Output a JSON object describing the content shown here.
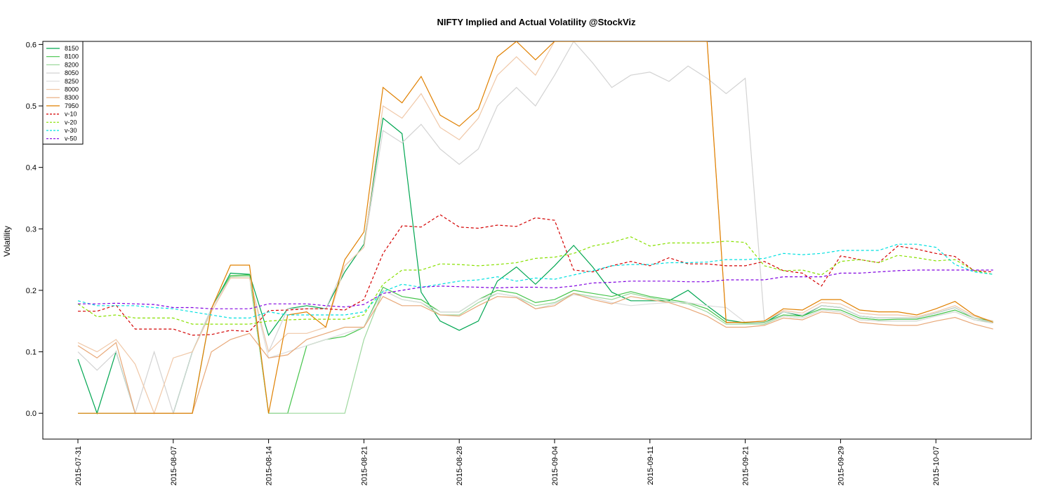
{
  "chart_data": {
    "type": "line",
    "title": "NIFTY Implied and Actual Volatility @StockViz",
    "xlabel": "",
    "ylabel": "Volatility",
    "ylim": [
      -0.042,
      0.605
    ],
    "yticks": [
      0.0,
      0.1,
      0.2,
      0.3,
      0.4,
      0.5,
      0.6
    ],
    "ytick_labels": [
      "0.0",
      "0.1",
      "0.2",
      "0.3",
      "0.4",
      "0.5",
      "0.6"
    ],
    "x_tick_labels": [
      "2015-07-31",
      "2015-08-07",
      "2015-08-14",
      "2015-08-21",
      "2015-08-28",
      "2015-09-04",
      "2015-09-11",
      "2015-09-21",
      "2015-09-29",
      "2015-10-07"
    ],
    "x_tick_index": [
      0,
      5,
      10,
      15,
      20,
      25,
      30,
      35,
      40,
      45
    ],
    "grid": false,
    "legend_position": "top-left",
    "series": [
      {
        "name": "8150",
        "color": "#00a651",
        "dash": "",
        "values": [
          0.088,
          0.0,
          0.1,
          0.0,
          0.0,
          0.0,
          0.1,
          0.17,
          0.228,
          0.226,
          0.127,
          0.17,
          0.175,
          0.17,
          0.23,
          0.275,
          0.48,
          0.455,
          0.197,
          0.15,
          0.135,
          0.15,
          0.215,
          0.238,
          0.21,
          0.24,
          0.273,
          0.238,
          0.197,
          0.183,
          0.183,
          0.183,
          0.2,
          0.175,
          0.152,
          0.147,
          0.147,
          0.165,
          0.158,
          0.175,
          0.172,
          0.158,
          0.155,
          0.155,
          0.155,
          0.163,
          0.172,
          0.155,
          0.148
        ]
      },
      {
        "name": "8100",
        "color": "#44c44a",
        "dash": "",
        "values": [
          0.0,
          0.0,
          0.0,
          0.0,
          0.0,
          0.0,
          0.0,
          0.17,
          0.224,
          0.225,
          0.0,
          0.0,
          0.11,
          0.12,
          0.125,
          0.14,
          0.205,
          0.19,
          0.185,
          0.165,
          0.165,
          0.185,
          0.2,
          0.195,
          0.18,
          0.185,
          0.2,
          0.195,
          0.19,
          0.198,
          0.19,
          0.185,
          0.18,
          0.17,
          0.148,
          0.147,
          0.148,
          0.16,
          0.158,
          0.17,
          0.168,
          0.155,
          0.152,
          0.153,
          0.153,
          0.16,
          0.168,
          0.155,
          0.15
        ]
      },
      {
        "name": "8200",
        "color": "#9ed89e",
        "dash": "",
        "values": [
          0.0,
          0.0,
          0.0,
          0.0,
          0.0,
          0.0,
          0.0,
          0.17,
          0.222,
          0.223,
          0.0,
          0.0,
          0.0,
          0.0,
          0.0,
          0.12,
          0.2,
          0.185,
          0.18,
          0.16,
          0.16,
          0.18,
          0.195,
          0.19,
          0.175,
          0.18,
          0.195,
          0.19,
          0.185,
          0.195,
          0.188,
          0.182,
          0.178,
          0.165,
          0.145,
          0.145,
          0.145,
          0.158,
          0.155,
          0.168,
          0.165,
          0.152,
          0.15,
          0.15,
          0.15,
          0.158,
          0.165,
          0.152,
          0.148
        ]
      },
      {
        "name": "8050",
        "color": "#d3d3d3",
        "dash": "",
        "values": [
          0.1,
          0.07,
          0.1,
          0.0,
          0.1,
          0.0,
          0.1,
          0.17,
          0.22,
          0.22,
          0.1,
          0.17,
          0.17,
          0.17,
          0.24,
          0.27,
          0.46,
          0.44,
          0.47,
          0.43,
          0.405,
          0.43,
          0.5,
          0.53,
          0.5,
          0.55,
          0.605,
          0.57,
          0.53,
          0.55,
          0.555,
          0.54,
          0.565,
          0.545,
          0.52,
          0.545,
          0.15,
          0.165,
          0.16,
          0.175,
          0.172,
          0.158,
          0.155,
          0.155,
          0.155,
          0.163,
          0.172,
          0.155,
          0.148
        ]
      },
      {
        "name": "8250",
        "color": "#dcdcdc",
        "dash": "",
        "values": [
          0.0,
          0.0,
          0.0,
          0.0,
          0.0,
          0.0,
          0.0,
          0.17,
          0.22,
          0.22,
          0.09,
          0.1,
          0.11,
          0.12,
          0.13,
          0.14,
          0.2,
          0.185,
          0.18,
          0.165,
          0.165,
          0.185,
          0.195,
          0.19,
          0.17,
          0.178,
          0.193,
          0.188,
          0.18,
          0.175,
          0.178,
          0.18,
          0.18,
          0.175,
          0.172,
          0.148,
          0.147,
          0.158,
          0.155,
          0.168,
          0.165,
          0.152,
          0.15,
          0.15,
          0.15,
          0.158,
          0.165,
          0.152,
          0.146
        ]
      },
      {
        "name": "8000",
        "color": "#f0c8a8",
        "dash": "",
        "values": [
          0.115,
          0.1,
          0.12,
          0.08,
          0.0,
          0.09,
          0.1,
          0.165,
          0.22,
          0.22,
          0.1,
          0.13,
          0.13,
          0.14,
          0.24,
          0.27,
          0.5,
          0.48,
          0.52,
          0.465,
          0.445,
          0.48,
          0.55,
          0.58,
          0.55,
          0.605,
          0.605,
          0.605,
          0.605,
          0.605,
          0.605,
          0.605,
          0.605,
          0.605,
          0.147,
          0.148,
          0.15,
          0.167,
          0.163,
          0.18,
          0.178,
          0.163,
          0.16,
          0.16,
          0.157,
          0.165,
          0.175,
          0.158,
          0.15
        ]
      },
      {
        "name": "8300",
        "color": "#e8a878",
        "dash": "",
        "values": [
          0.11,
          0.09,
          0.115,
          0.0,
          0.0,
          0.0,
          0.0,
          0.1,
          0.12,
          0.13,
          0.09,
          0.095,
          0.12,
          0.13,
          0.14,
          0.14,
          0.19,
          0.175,
          0.175,
          0.16,
          0.158,
          0.175,
          0.19,
          0.188,
          0.17,
          0.175,
          0.195,
          0.185,
          0.178,
          0.19,
          0.185,
          0.18,
          0.17,
          0.158,
          0.14,
          0.14,
          0.143,
          0.155,
          0.152,
          0.165,
          0.162,
          0.148,
          0.145,
          0.143,
          0.143,
          0.15,
          0.156,
          0.145,
          0.137
        ]
      },
      {
        "name": "7950",
        "color": "#e08000",
        "dash": "",
        "values": [
          0.0,
          0.0,
          0.0,
          0.0,
          0.0,
          0.0,
          0.0,
          0.17,
          0.241,
          0.241,
          0.0,
          0.16,
          0.165,
          0.14,
          0.25,
          0.295,
          0.53,
          0.505,
          0.548,
          0.485,
          0.467,
          0.495,
          0.58,
          0.605,
          0.575,
          0.605,
          0.605,
          0.605,
          0.605,
          0.605,
          0.605,
          0.605,
          0.605,
          0.605,
          0.148,
          0.148,
          0.15,
          0.17,
          0.168,
          0.185,
          0.185,
          0.168,
          0.165,
          0.165,
          0.16,
          0.17,
          0.182,
          0.16,
          0.148
        ]
      },
      {
        "name": "v-10",
        "color": "#d40000",
        "dash": "4,3",
        "values": [
          0.166,
          0.166,
          0.176,
          0.137,
          0.137,
          0.137,
          0.127,
          0.128,
          0.135,
          0.133,
          0.167,
          0.168,
          0.17,
          0.17,
          0.168,
          0.185,
          0.26,
          0.305,
          0.303,
          0.323,
          0.303,
          0.301,
          0.306,
          0.304,
          0.318,
          0.314,
          0.233,
          0.23,
          0.24,
          0.247,
          0.24,
          0.253,
          0.243,
          0.243,
          0.24,
          0.24,
          0.247,
          0.232,
          0.228,
          0.207,
          0.256,
          0.25,
          0.245,
          0.272,
          0.267,
          0.26,
          0.255,
          0.232,
          0.23
        ]
      },
      {
        "name": "v-20",
        "color": "#88e000",
        "dash": "4,3",
        "values": [
          0.178,
          0.157,
          0.16,
          0.155,
          0.155,
          0.155,
          0.145,
          0.145,
          0.145,
          0.145,
          0.15,
          0.152,
          0.153,
          0.153,
          0.153,
          0.16,
          0.21,
          0.233,
          0.233,
          0.243,
          0.242,
          0.24,
          0.242,
          0.245,
          0.252,
          0.254,
          0.26,
          0.272,
          0.278,
          0.287,
          0.272,
          0.277,
          0.277,
          0.277,
          0.28,
          0.278,
          0.24,
          0.232,
          0.233,
          0.225,
          0.247,
          0.25,
          0.245,
          0.257,
          0.253,
          0.248,
          0.25,
          0.232,
          0.226
        ]
      },
      {
        "name": "v-30",
        "color": "#00e0e0",
        "dash": "4,3",
        "values": [
          0.183,
          0.175,
          0.175,
          0.175,
          0.172,
          0.17,
          0.165,
          0.16,
          0.155,
          0.155,
          0.165,
          0.16,
          0.16,
          0.16,
          0.16,
          0.165,
          0.198,
          0.21,
          0.205,
          0.21,
          0.215,
          0.217,
          0.222,
          0.215,
          0.22,
          0.218,
          0.225,
          0.232,
          0.24,
          0.242,
          0.242,
          0.245,
          0.245,
          0.246,
          0.25,
          0.25,
          0.252,
          0.26,
          0.258,
          0.26,
          0.265,
          0.265,
          0.265,
          0.275,
          0.275,
          0.27,
          0.242,
          0.23,
          0.226
        ]
      },
      {
        "name": "v-50",
        "color": "#8000e0",
        "dash": "4,3",
        "values": [
          0.178,
          0.178,
          0.179,
          0.178,
          0.177,
          0.172,
          0.172,
          0.17,
          0.17,
          0.17,
          0.178,
          0.178,
          0.178,
          0.175,
          0.173,
          0.177,
          0.195,
          0.2,
          0.205,
          0.207,
          0.206,
          0.205,
          0.204,
          0.205,
          0.205,
          0.204,
          0.207,
          0.212,
          0.213,
          0.215,
          0.215,
          0.215,
          0.214,
          0.214,
          0.217,
          0.217,
          0.217,
          0.222,
          0.222,
          0.222,
          0.228,
          0.228,
          0.23,
          0.232,
          0.233,
          0.233,
          0.233,
          0.233,
          0.233
        ]
      }
    ]
  }
}
